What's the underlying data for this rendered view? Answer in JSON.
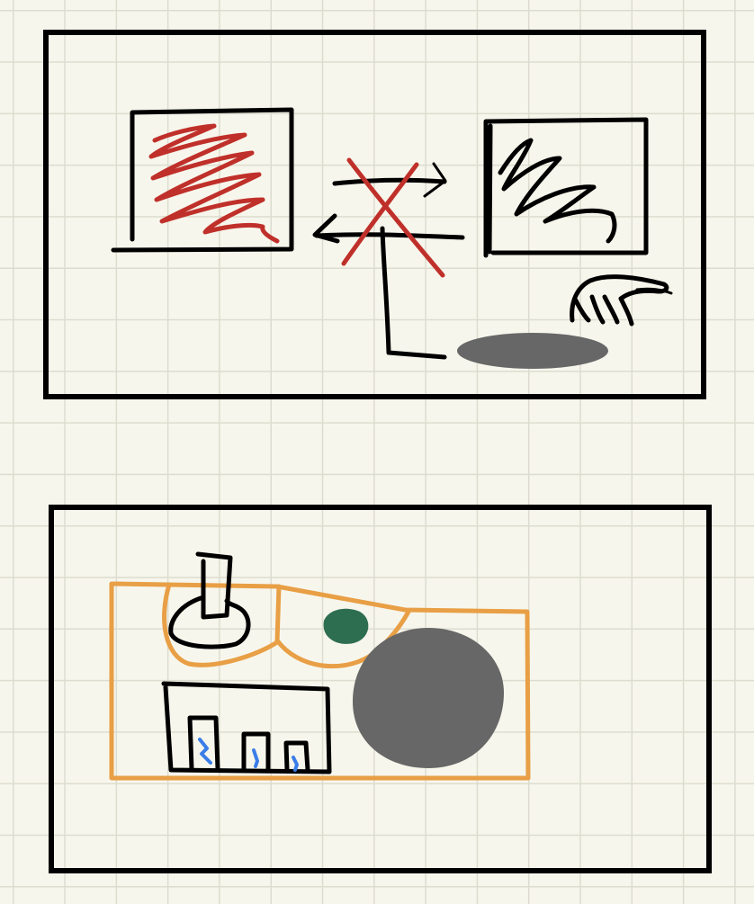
{
  "colors": {
    "paper": "#f7f6ec",
    "grid": "#dcdccf",
    "ink": "#000000",
    "red": "#c0302a",
    "orange": "#e89f45",
    "gray": "#676767",
    "green": "#2e6e50",
    "blue": "#3a7de8"
  },
  "icons": {
    "hand": "hand-icon",
    "crossed_arrows": "crossed-arrows-icon"
  }
}
